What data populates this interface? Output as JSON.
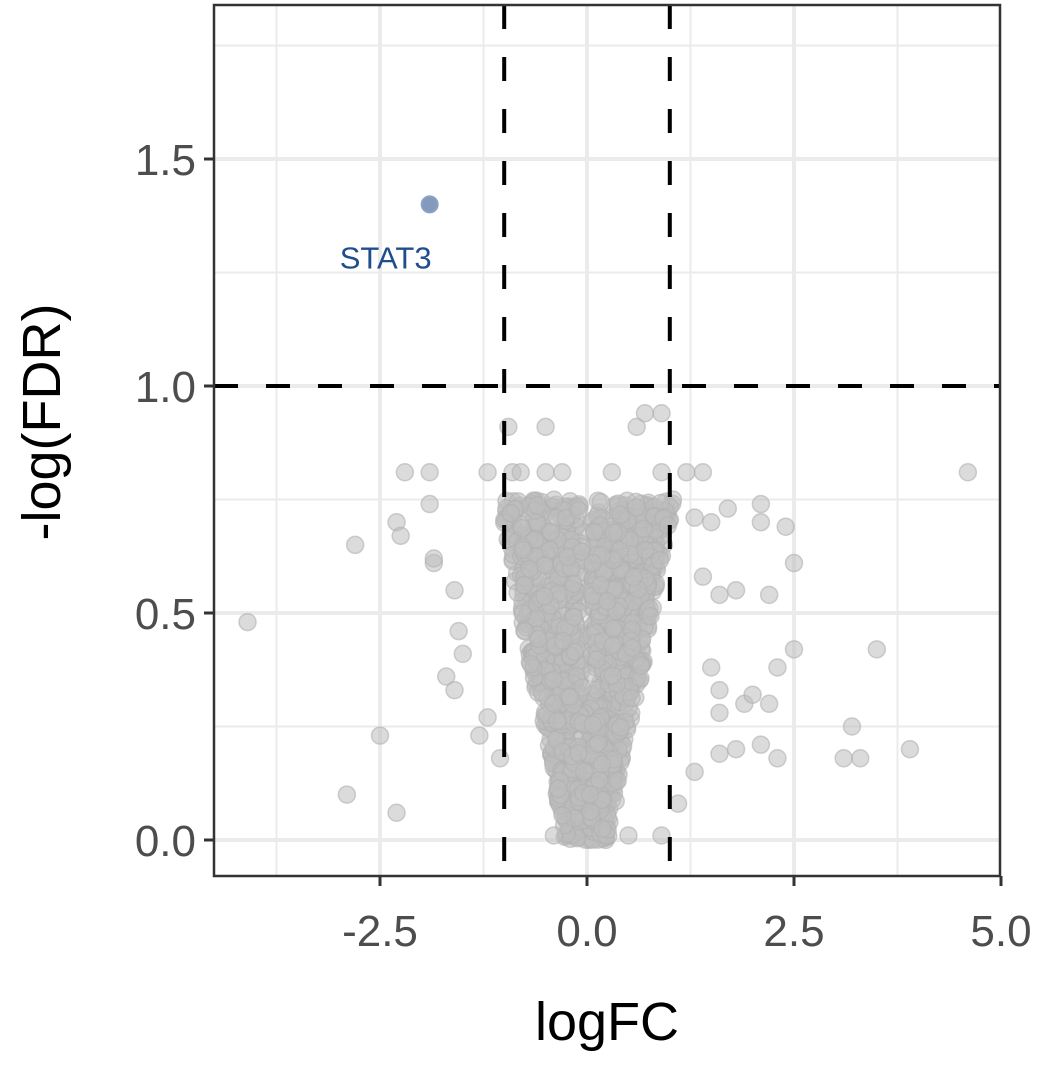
{
  "chart_data": {
    "type": "scatter",
    "subtype": "volcano",
    "title": "",
    "xlabel": "logFC",
    "ylabel": "-log(FDR)",
    "xlim": [
      -4.5,
      5.0
    ],
    "ylim": [
      -0.08,
      1.84
    ],
    "x_ticks": [
      -2.5,
      0.0,
      2.5,
      5.0
    ],
    "x_tick_labels": [
      "-2.5",
      "0.0",
      "2.5",
      "5.0"
    ],
    "y_ticks": [
      0.0,
      0.5,
      1.0,
      1.5
    ],
    "y_tick_labels": [
      "0.0",
      "0.5",
      "1.0",
      "1.5"
    ],
    "grid": true,
    "legend": "none",
    "thresholds": {
      "logFC_vertical": [
        -1.0,
        1.0
      ],
      "neglogFDR_horizontal": 1.0,
      "style": "dashed",
      "color": "#000000"
    },
    "colors": {
      "not_significant": "#bdbdbd",
      "significant": "#6f88b0",
      "label": "#1f4e8c",
      "grid": "#ebebeb",
      "frame": "#333333",
      "tick_text": "#4d4d4d"
    },
    "highlighted": [
      {
        "gene": "STAT3",
        "logFC": -1.9,
        "neglogFDR": 1.4
      }
    ],
    "series": [
      {
        "name": "not significant",
        "points": [
          [
            -4.1,
            0.48
          ],
          [
            -2.9,
            0.1
          ],
          [
            -2.5,
            0.23
          ],
          [
            -2.3,
            0.06
          ],
          [
            -2.8,
            0.65
          ],
          [
            -2.3,
            0.7
          ],
          [
            -2.25,
            0.67
          ],
          [
            -2.2,
            0.81
          ],
          [
            -1.9,
            0.81
          ],
          [
            -1.9,
            0.74
          ],
          [
            -1.85,
            0.61
          ],
          [
            -1.85,
            0.62
          ],
          [
            -1.6,
            0.55
          ],
          [
            -1.55,
            0.46
          ],
          [
            -1.5,
            0.41
          ],
          [
            -1.7,
            0.36
          ],
          [
            -1.6,
            0.33
          ],
          [
            -1.2,
            0.27
          ],
          [
            -1.3,
            0.23
          ],
          [
            -1.05,
            0.18
          ],
          [
            -1.2,
            0.81
          ],
          [
            -0.9,
            0.81
          ],
          [
            -0.95,
            0.91
          ],
          [
            -0.5,
            0.91
          ],
          [
            -0.8,
            0.81
          ],
          [
            -0.5,
            0.81
          ],
          [
            -0.3,
            0.81
          ],
          [
            0.3,
            0.81
          ],
          [
            0.6,
            0.91
          ],
          [
            0.7,
            0.94
          ],
          [
            0.9,
            0.94
          ],
          [
            0.9,
            0.81
          ],
          [
            1.2,
            0.81
          ],
          [
            1.4,
            0.81
          ],
          [
            1.3,
            0.71
          ],
          [
            1.5,
            0.7
          ],
          [
            1.7,
            0.73
          ],
          [
            2.1,
            0.74
          ],
          [
            2.1,
            0.7
          ],
          [
            2.4,
            0.69
          ],
          [
            2.5,
            0.61
          ],
          [
            1.4,
            0.58
          ],
          [
            1.6,
            0.54
          ],
          [
            1.8,
            0.55
          ],
          [
            2.2,
            0.54
          ],
          [
            1.5,
            0.38
          ],
          [
            1.6,
            0.33
          ],
          [
            1.9,
            0.3
          ],
          [
            1.6,
            0.28
          ],
          [
            2.0,
            0.32
          ],
          [
            2.2,
            0.3
          ],
          [
            2.3,
            0.38
          ],
          [
            2.5,
            0.42
          ],
          [
            2.1,
            0.21
          ],
          [
            2.3,
            0.18
          ],
          [
            1.8,
            0.2
          ],
          [
            1.6,
            0.19
          ],
          [
            1.3,
            0.15
          ],
          [
            1.1,
            0.08
          ],
          [
            3.2,
            0.25
          ],
          [
            3.1,
            0.18
          ],
          [
            3.3,
            0.18
          ],
          [
            3.5,
            0.42
          ],
          [
            3.9,
            0.2
          ],
          [
            4.6,
            0.81
          ],
          [
            0.9,
            0.01
          ],
          [
            -0.4,
            0.01
          ],
          [
            0.5,
            0.01
          ]
        ]
      }
    ],
    "dense_cloud": {
      "description": "dense V-shaped cloud of non-significant genes centered at logFC 0, spanning ~[-1.0, 1.0] at -log(FDR) 0.7 and narrowing to 0 at the baseline",
      "count": 1400,
      "seed": 7
    }
  }
}
